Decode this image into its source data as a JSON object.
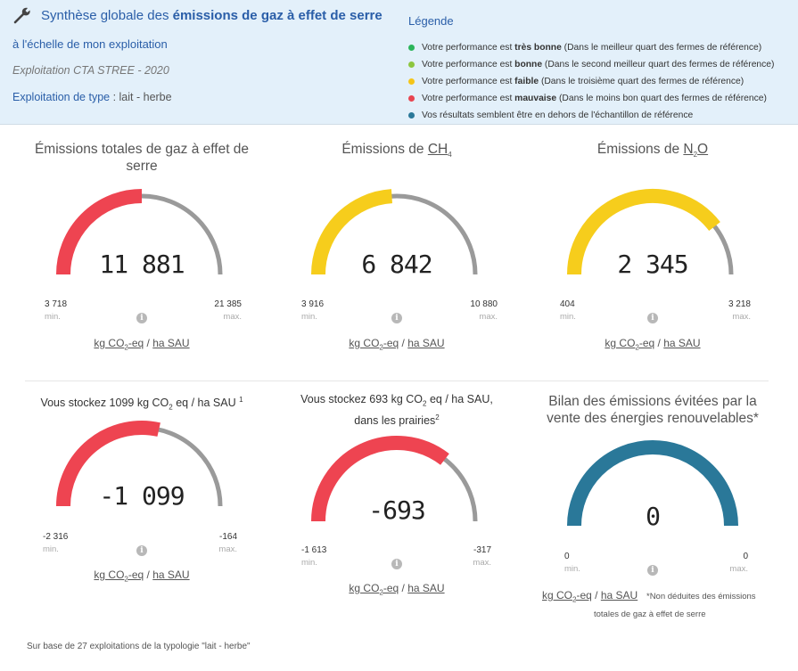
{
  "header": {
    "title_prefix": "Synthèse globale des ",
    "title_bold": "émissions de gaz à effet de serre",
    "subtitle": "à l'échelle de mon exploitation",
    "exploitation": "Exploitation CTA STREE - 2020",
    "type_label": "Exploitation de type",
    "type_value": " : lait - herbe"
  },
  "legend": {
    "title": "Légende",
    "items": [
      {
        "color": "#2bb55a",
        "pre": "Votre performance est ",
        "bold": "très bonne",
        "post": " (Dans le meilleur quart des fermes de référence)"
      },
      {
        "color": "#8dc63f",
        "pre": "Votre performance est ",
        "bold": "bonne",
        "post": " (Dans le second meilleur quart des fermes de référence)"
      },
      {
        "color": "#f5c518",
        "pre": "Votre performance est ",
        "bold": "faible",
        "post": " (Dans le troisième quart des fermes de référence)"
      },
      {
        "color": "#e84550",
        "pre": "Votre performance est ",
        "bold": "mauvaise",
        "post": " (Dans le moins bon quart des fermes de référence)"
      },
      {
        "color": "#2a7899",
        "pre": "Vos résultats semblent être en dehors de l'échantillon de référence",
        "bold": "",
        "post": ""
      }
    ]
  },
  "colors": {
    "red": "#ee4451",
    "yellow": "#f6cd1c",
    "teal": "#2a7899",
    "gray": "#9a9a9a"
  },
  "gauges": {
    "total": {
      "title": "Émissions totales de gaz à effet de serre",
      "value": "11 881",
      "min": "3 718",
      "max": "21 385",
      "fraction": 0.5,
      "color": "#ee4451"
    },
    "ch4": {
      "title_pre": "Émissions de ",
      "title_u": "CH",
      "title_sub": "4",
      "value": "6 842",
      "min": "3 916",
      "max": "10 880",
      "fraction": 0.48,
      "color": "#f6cd1c"
    },
    "n2o": {
      "title_pre": "Émissions de ",
      "title_u1": "N",
      "title_sub": "2",
      "title_u2": "O",
      "value": "2 345",
      "min": "404",
      "max": "3 218",
      "fraction": 0.79,
      "color": "#f6cd1c"
    },
    "stock": {
      "title_pre": "Vous stockez 1099 kg CO",
      "title_sub": "2",
      "title_post": " eq / ha SAU ",
      "title_sup": "1",
      "value": "-1 099",
      "min": "-2 316",
      "max": "-164",
      "fraction": 0.57,
      "color": "#ee4451"
    },
    "prairies": {
      "title_pre": "Vous stockez 693 kg CO",
      "title_sub": "2",
      "title_post": " eq / ha SAU,",
      "title_line2": "dans les prairies",
      "title_sup": "2",
      "value": "-693",
      "min": "-1 613",
      "max": "-317",
      "fraction": 0.71,
      "color": "#ee4451"
    },
    "bilan": {
      "title": "Bilan des émissions évitées par la vente des énergies renouvelables*",
      "value": "0",
      "min": "0",
      "max": "0",
      "fraction": 1.0,
      "color": "#2a7899"
    }
  },
  "labels": {
    "min": "min.",
    "max": "max.",
    "info": "i"
  },
  "unit": {
    "kg": "kg CO",
    "sub": "2",
    "eq": "-eq",
    "sep": " / ",
    "ha": "ha SAU"
  },
  "bilan_note_1": "*Non déduites des émissions",
  "bilan_note_2": "totales de gaz à effet de serre",
  "footer": "Sur base de 27 exploitations de la typologie \"lait - herbe\""
}
